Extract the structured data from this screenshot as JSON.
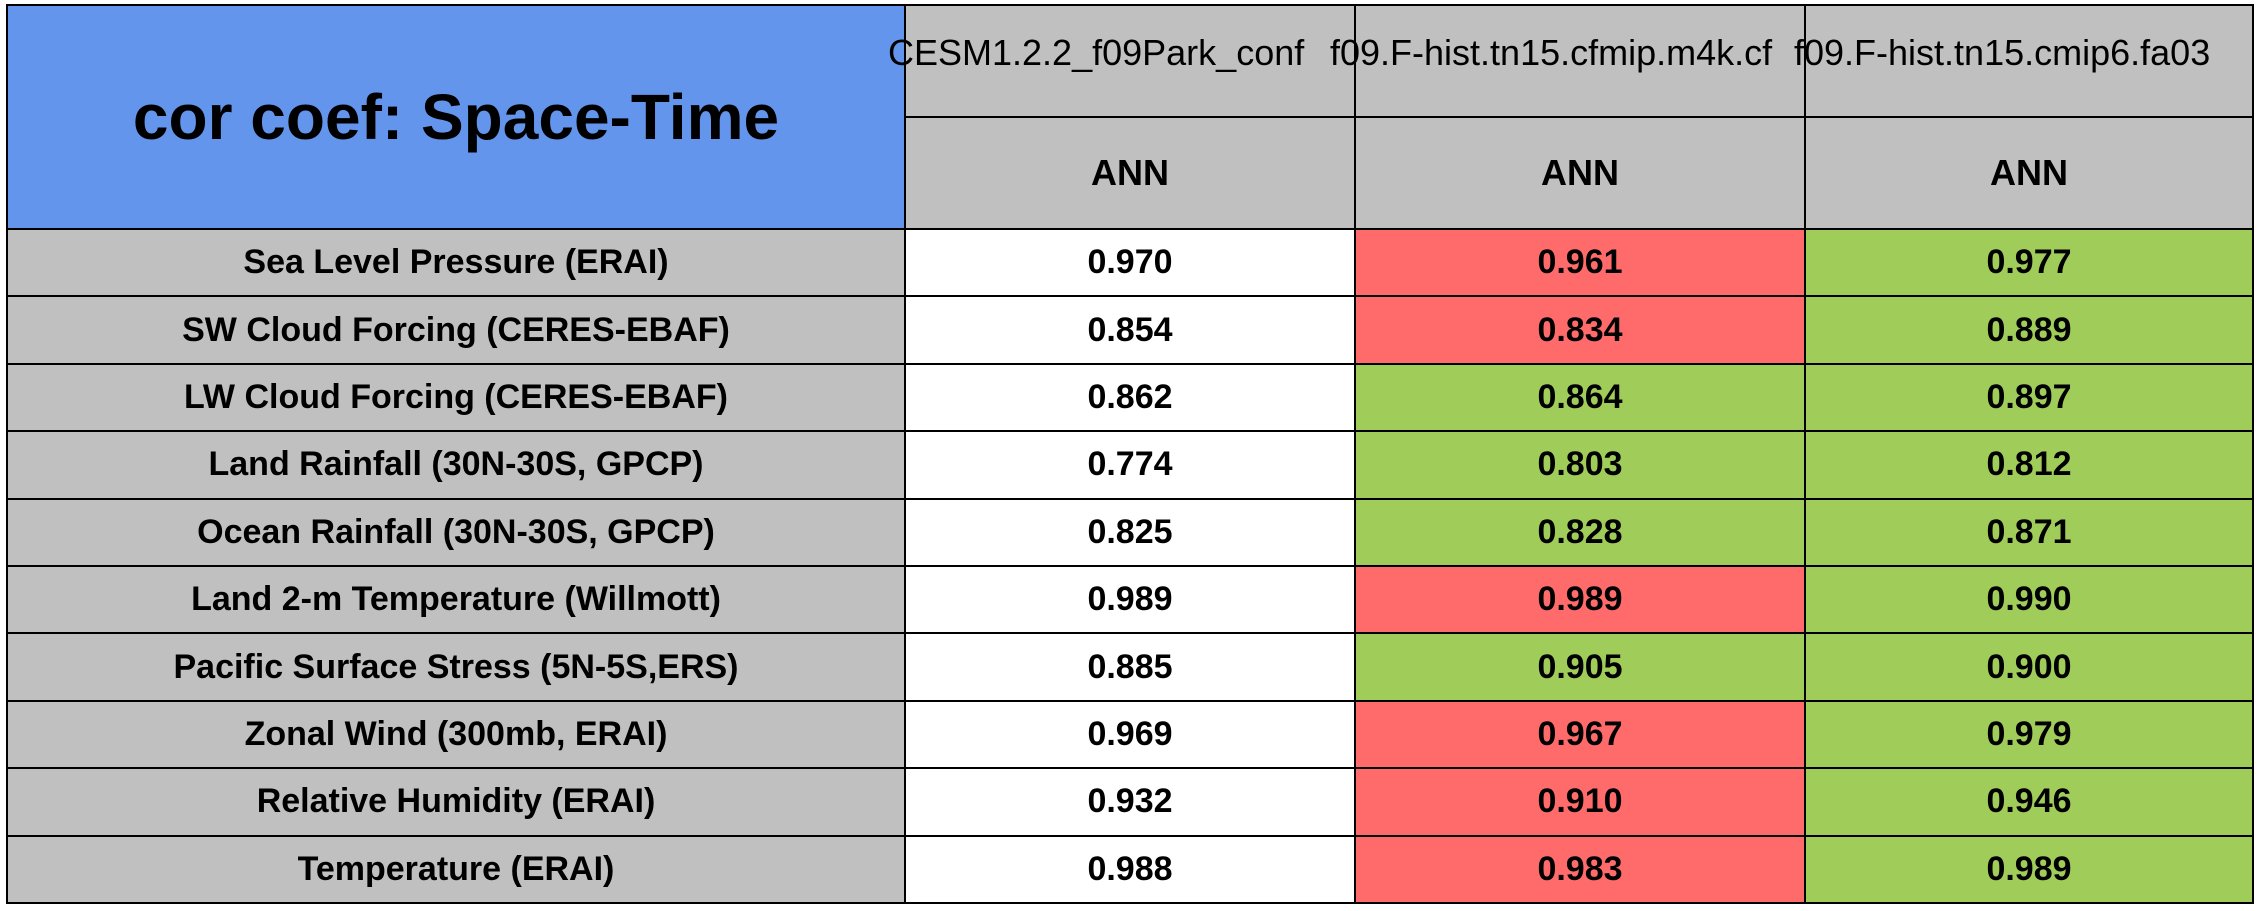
{
  "title": "cor coef: Space-Time",
  "columns": [
    {
      "run": "CESM1.2.2_f09Park_conf",
      "season": "ANN"
    },
    {
      "run": "f09.F-hist.tn15.cfmip.m4k.cf",
      "season": "ANN"
    },
    {
      "run": "f09.F-hist.tn15.cmip6.fa03",
      "season": "ANN"
    }
  ],
  "rows": [
    {
      "label": "Sea Level Pressure (ERAI)",
      "values": [
        "0.970",
        "0.961",
        "0.977"
      ],
      "status": [
        "white",
        "red",
        "green"
      ]
    },
    {
      "label": "SW Cloud Forcing (CERES-EBAF)",
      "values": [
        "0.854",
        "0.834",
        "0.889"
      ],
      "status": [
        "white",
        "red",
        "green"
      ]
    },
    {
      "label": "LW Cloud Forcing (CERES-EBAF)",
      "values": [
        "0.862",
        "0.864",
        "0.897"
      ],
      "status": [
        "white",
        "green",
        "green"
      ]
    },
    {
      "label": "Land Rainfall (30N-30S, GPCP)",
      "values": [
        "0.774",
        "0.803",
        "0.812"
      ],
      "status": [
        "white",
        "green",
        "green"
      ]
    },
    {
      "label": "Ocean Rainfall (30N-30S, GPCP)",
      "values": [
        "0.825",
        "0.828",
        "0.871"
      ],
      "status": [
        "white",
        "green",
        "green"
      ]
    },
    {
      "label": "Land 2-m Temperature (Willmott)",
      "values": [
        "0.989",
        "0.989",
        "0.990"
      ],
      "status": [
        "white",
        "red",
        "green"
      ]
    },
    {
      "label": "Pacific Surface Stress (5N-5S,ERS)",
      "values": [
        "0.885",
        "0.905",
        "0.900"
      ],
      "status": [
        "white",
        "green",
        "green"
      ]
    },
    {
      "label": "Zonal Wind (300mb, ERAI)",
      "values": [
        "0.969",
        "0.967",
        "0.979"
      ],
      "status": [
        "white",
        "red",
        "green"
      ]
    },
    {
      "label": "Relative Humidity (ERAI)",
      "values": [
        "0.932",
        "0.910",
        "0.946"
      ],
      "status": [
        "white",
        "red",
        "green"
      ]
    },
    {
      "label": "Temperature (ERAI)",
      "values": [
        "0.988",
        "0.983",
        "0.989"
      ],
      "status": [
        "white",
        "red",
        "green"
      ]
    }
  ],
  "colors": {
    "header": "#6495ed",
    "label_bg": "#c0c0c0",
    "better": "#a0cc5a",
    "worse": "#ff6b6b",
    "baseline": "#ffffff"
  }
}
